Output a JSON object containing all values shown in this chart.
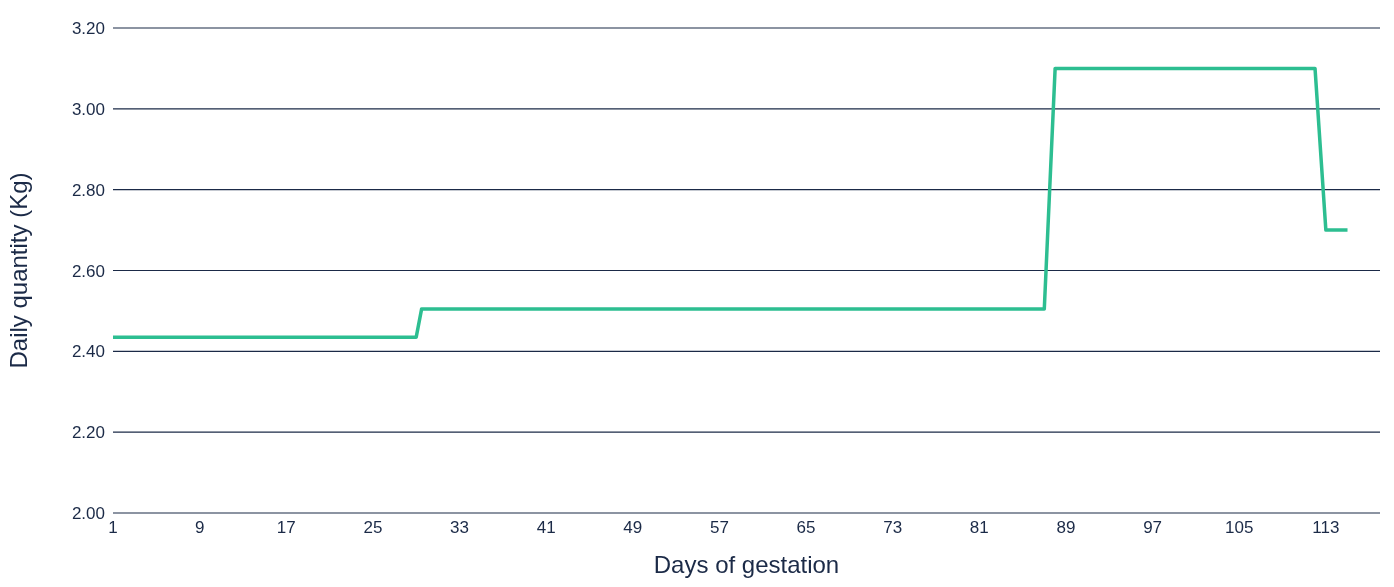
{
  "chart_data": {
    "type": "line",
    "xlabel": "Days of gestation",
    "ylabel": "Daily quantity (Kg)",
    "x": [
      1,
      29,
      29.5,
      87,
      88,
      112,
      113,
      115
    ],
    "series": [
      {
        "color": "#2dbe91",
        "values": [
          2.435,
          2.435,
          2.505,
          2.505,
          3.1,
          3.1,
          2.7,
          2.7
        ]
      }
    ],
    "xlim": [
      1,
      118
    ],
    "xticks": [
      1,
      9,
      17,
      25,
      33,
      41,
      49,
      57,
      65,
      73,
      81,
      89,
      97,
      105,
      113
    ],
    "ylim": [
      2,
      3.2
    ],
    "yticks": [
      {
        "value": 2,
        "label": "2.00"
      },
      {
        "value": 2.2,
        "label": "2.20"
      },
      {
        "value": 2.4,
        "label": "2.40"
      },
      {
        "value": 2.6,
        "label": "2.60"
      },
      {
        "value": 2.8,
        "label": "2.80"
      },
      {
        "value": 3,
        "label": "3.00"
      },
      {
        "value": 3.2,
        "label": "3.20"
      }
    ],
    "grid": "y",
    "legend": false,
    "marker": "none",
    "line_style": "solid"
  }
}
